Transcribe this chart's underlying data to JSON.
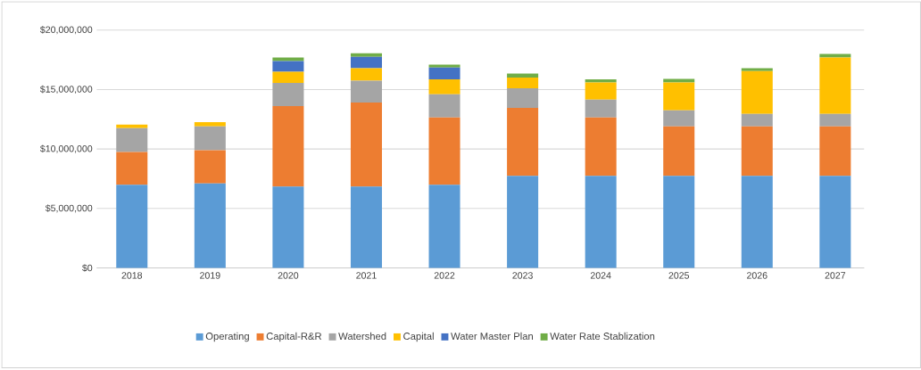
{
  "chart_data": {
    "type": "bar",
    "stacked": true,
    "categories": [
      "2018",
      "2019",
      "2020",
      "2021",
      "2022",
      "2023",
      "2024",
      "2025",
      "2026",
      "2027"
    ],
    "series": [
      {
        "name": "Operating",
        "color": "#5b9bd5",
        "values": [
          7000000,
          7100000,
          6850000,
          6850000,
          7000000,
          7750000,
          7750000,
          7750000,
          7750000,
          7750000
        ]
      },
      {
        "name": "Capital-R&R",
        "color": "#ed7d31",
        "values": [
          2750000,
          2800000,
          6750000,
          7050000,
          5650000,
          5700000,
          4900000,
          4150000,
          4150000,
          4150000
        ]
      },
      {
        "name": "Watershed",
        "color": "#a5a5a5",
        "values": [
          2000000,
          2000000,
          1950000,
          1850000,
          1950000,
          1650000,
          1500000,
          1350000,
          1050000,
          1050000
        ]
      },
      {
        "name": "Capital",
        "color": "#ffc000",
        "values": [
          300000,
          350000,
          950000,
          1050000,
          1250000,
          900000,
          1450000,
          2350000,
          3600000,
          4750000
        ]
      },
      {
        "name": "Water Master Plan",
        "color": "#4472c4",
        "values": [
          0,
          0,
          900000,
          950000,
          1000000,
          0,
          0,
          0,
          0,
          0
        ]
      },
      {
        "name": "Water Rate Stablization",
        "color": "#70ad47",
        "values": [
          0,
          0,
          300000,
          300000,
          250000,
          350000,
          250000,
          300000,
          250000,
          300000
        ]
      }
    ],
    "ylim": [
      0,
      20000000
    ],
    "yticks": [
      {
        "value": 0,
        "label": "$0"
      },
      {
        "value": 5000000,
        "label": "$5,000,000"
      },
      {
        "value": 10000000,
        "label": "$10,000,000"
      },
      {
        "value": 15000000,
        "label": "$15,000,000"
      },
      {
        "value": 20000000,
        "label": "$20,000,000"
      }
    ],
    "grid": "y",
    "legend": "bottom"
  }
}
